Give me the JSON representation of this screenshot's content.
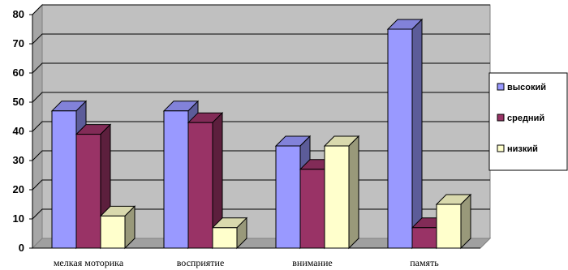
{
  "chart_data": {
    "type": "bar",
    "title": "",
    "xlabel": "",
    "ylabel": "",
    "ylim": [
      0,
      80
    ],
    "yticks": [
      0,
      10,
      20,
      30,
      40,
      50,
      60,
      70,
      80
    ],
    "grid": true,
    "legend_position": "right",
    "categories": [
      "мелкая моторика",
      "восприятие",
      "внимание",
      "память"
    ],
    "series": [
      {
        "name": "высокий",
        "values": [
          47,
          47,
          35,
          75
        ],
        "color": "#9999FF"
      },
      {
        "name": "средний",
        "values": [
          39,
          43,
          27,
          7
        ],
        "color": "#993366"
      },
      {
        "name": "низкий",
        "values": [
          11,
          7,
          35,
          15
        ],
        "color": "#FFFFCC"
      }
    ],
    "plot_background": "#C0C0C0"
  }
}
